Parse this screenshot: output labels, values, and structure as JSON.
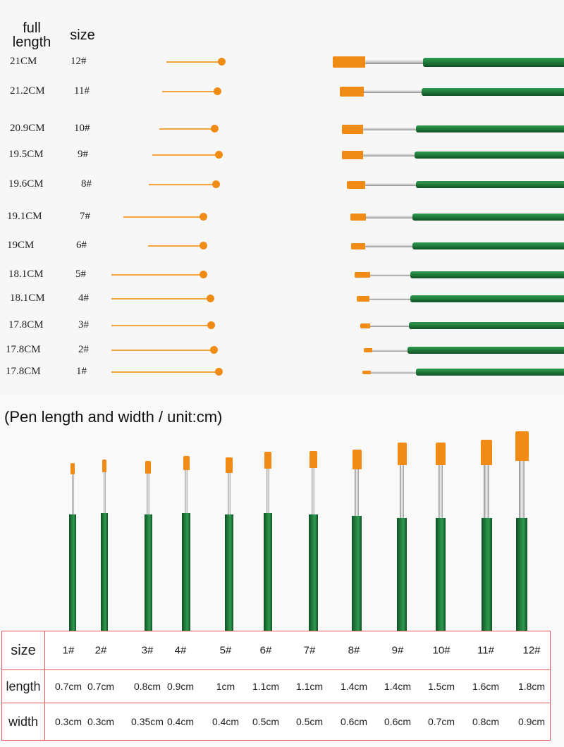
{
  "header": {
    "full_length_label": "full\nlength",
    "size_label": "size"
  },
  "rows": [
    {
      "length": "21CM",
      "size": "12#"
    },
    {
      "length": "21.2CM",
      "size": "11#"
    },
    {
      "length": "20.9CM",
      "size": "10#"
    },
    {
      "length": "19.5CM",
      "size": "9#"
    },
    {
      "length": "19.6CM",
      "size": "8#"
    },
    {
      "length": "19.1CM",
      "size": "7#"
    },
    {
      "length": "19CM",
      "size": "6#"
    },
    {
      "length": "18.1CM",
      "size": "5#"
    },
    {
      "length": "18.1CM",
      "size": "4#"
    },
    {
      "length": "17.8CM",
      "size": "3#"
    },
    {
      "length": "17.8CM",
      "size": "2#"
    },
    {
      "length": "17.8CM",
      "size": "1#"
    }
  ],
  "subtitle": "(Pen length and width / unit:cm)",
  "table": {
    "row_labels": [
      "size",
      "length",
      "width"
    ],
    "sizes": [
      "1#",
      "2#",
      "3#",
      "4#",
      "5#",
      "6#",
      "7#",
      "8#",
      "9#",
      "10#",
      "11#",
      "12#"
    ],
    "lengths": [
      "0.7cm",
      "0.7cm",
      "0.8cm",
      "0.9cm",
      "1cm",
      "1.1cm",
      "1.1cm",
      "1.4cm",
      "1.4cm",
      "1.5cm",
      "1.6cm",
      "1.8cm"
    ],
    "widths": [
      "0.3cm",
      "0.3cm",
      "0.35cm",
      "0.4cm",
      "0.4cm",
      "0.5cm",
      "0.5cm",
      "0.6cm",
      "0.6cm",
      "0.7cm",
      "0.8cm",
      "0.9cm"
    ]
  },
  "colors": {
    "handle": "#1f7a3a",
    "bristle": "#f08c16",
    "ferrule": "#c9c9c9",
    "pointer": "#f2a33a",
    "table_border": "#e8585a"
  }
}
